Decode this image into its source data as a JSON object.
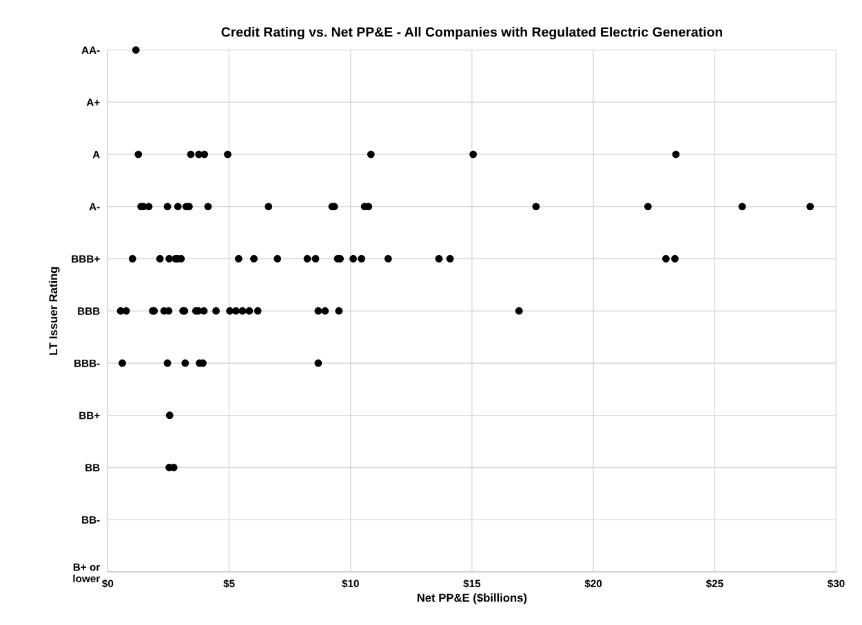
{
  "chart_data": {
    "type": "scatter",
    "orientation": "horizontal",
    "title": "Credit Rating vs. Net PP&E - All Companies with Regulated Electric Generation",
    "xlabel": "Net PP&E ($billions)",
    "ylabel": "LT Issuer Rating",
    "categories": [
      "AA-",
      "A+",
      "A",
      "A-",
      "BBB+",
      "BBB",
      "BBB-",
      "BB+",
      "BB",
      "BB-",
      "B+ or\nlower"
    ],
    "series": [
      {
        "color": "#000000",
        "x": [
          "AA-",
          "A",
          "A",
          "A",
          "A",
          "A",
          "A",
          "A",
          "A",
          "A-",
          "A-",
          "A-",
          "A-",
          "A-",
          "A-",
          "A-",
          "A-",
          "A-",
          "A-",
          "A-",
          "A-",
          "A-",
          "A-",
          "A-",
          "A-",
          "A-",
          "BBB+",
          "BBB+",
          "BBB+",
          "BBB+",
          "BBB+",
          "BBB+",
          "BBB+",
          "BBB+",
          "BBB+",
          "BBB+",
          "BBB+",
          "BBB+",
          "BBB+",
          "BBB+",
          "BBB+",
          "BBB+",
          "BBB+",
          "BBB+",
          "BBB+",
          "BBB+",
          "BBB",
          "BBB",
          "BBB",
          "BBB",
          "BBB",
          "BBB",
          "BBB",
          "BBB",
          "BBB",
          "BBB",
          "BBB",
          "BBB",
          "BBB",
          "BBB",
          "BBB",
          "BBB",
          "BBB",
          "BBB",
          "BBB",
          "BBB",
          "BBB",
          "BBB-",
          "BBB-",
          "BBB-",
          "BBB-",
          "BBB-",
          "BBB-",
          "BB+",
          "BB",
          "BB"
        ],
        "values": [
          1.16,
          1.26,
          3.42,
          3.75,
          3.98,
          4.94,
          10.84,
          15.05,
          23.4,
          1.37,
          1.47,
          1.69,
          2.46,
          2.89,
          3.23,
          3.35,
          4.13,
          6.62,
          9.24,
          9.33,
          10.58,
          10.74,
          17.64,
          22.25,
          26.13,
          28.93,
          1.02,
          2.15,
          2.53,
          2.79,
          2.88,
          3.02,
          5.39,
          6.02,
          6.99,
          8.22,
          8.56,
          9.47,
          9.57,
          10.11,
          10.45,
          11.55,
          13.64,
          14.1,
          22.99,
          23.36,
          0.53,
          0.76,
          1.85,
          1.91,
          2.32,
          2.51,
          3.1,
          3.16,
          3.63,
          3.73,
          3.96,
          4.46,
          5.03,
          5.28,
          5.55,
          5.83,
          6.18,
          8.67,
          8.95,
          9.52,
          16.94,
          0.6,
          2.46,
          3.19,
          3.78,
          3.92,
          8.67,
          2.55,
          2.53,
          2.72
        ]
      }
    ],
    "xlim": [
      0,
      30
    ],
    "xticks": [
      {
        "value": 0,
        "label": "$0"
      },
      {
        "value": 5,
        "label": "$5"
      },
      {
        "value": 10,
        "label": "$10"
      },
      {
        "value": 15,
        "label": "$15"
      },
      {
        "value": 20,
        "label": "$20"
      },
      {
        "value": 25,
        "label": "$25"
      },
      {
        "value": 30,
        "label": "$30"
      }
    ],
    "grid": true,
    "marker": "circle"
  }
}
